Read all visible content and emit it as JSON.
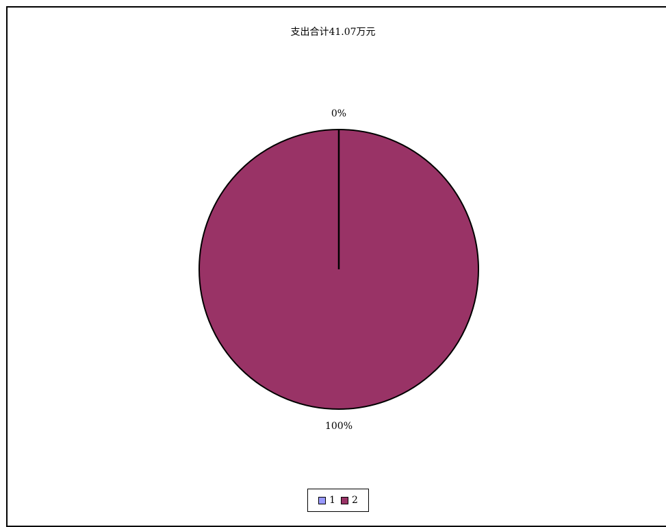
{
  "chart_data": {
    "type": "pie",
    "title": "支出合计41.07万元",
    "categories": [
      "1",
      "2"
    ],
    "values": [
      0,
      100
    ],
    "data_labels": [
      "0%",
      "100%"
    ],
    "colors": [
      "#9999ff",
      "#993366"
    ],
    "legend": {
      "placement": "bottom",
      "entries": [
        "1",
        "2"
      ]
    },
    "grid": false
  }
}
